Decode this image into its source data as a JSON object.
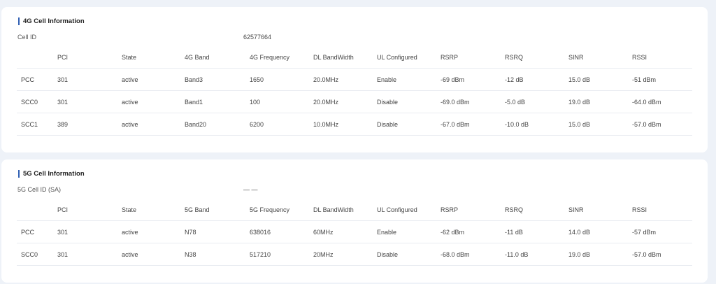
{
  "lte": {
    "title": "4G Cell Information",
    "cell_id_label": "Cell ID",
    "cell_id_value": "62577664",
    "headers": [
      "",
      "PCI",
      "State",
      "4G Band",
      "4G Frequency",
      "DL BandWidth",
      "UL Configured",
      "RSRP",
      "RSRQ",
      "SINR",
      "RSSI"
    ],
    "rows": [
      [
        "PCC",
        "301",
        "active",
        "Band3",
        "1650",
        "20.0MHz",
        "Enable",
        "-69 dBm",
        "-12 dB",
        "15.0 dB",
        "-51 dBm"
      ],
      [
        "SCC0",
        "301",
        "active",
        "Band1",
        "100",
        "20.0MHz",
        "Disable",
        "-69.0 dBm",
        "-5.0 dB",
        "19.0 dB",
        "-64.0 dBm"
      ],
      [
        "SCC1",
        "389",
        "active",
        "Band20",
        "6200",
        "10.0MHz",
        "Disable",
        "-67.0 dBm",
        "-10.0 dB",
        "15.0 dB",
        "-57.0 dBm"
      ]
    ]
  },
  "nr": {
    "title": "5G Cell Information",
    "cell_id_label": "5G Cell ID (SA)",
    "cell_id_value": "— —",
    "headers": [
      "",
      "PCI",
      "State",
      "5G Band",
      "5G Frequency",
      "DL BandWidth",
      "UL Configured",
      "RSRP",
      "RSRQ",
      "SINR",
      "RSSI"
    ],
    "rows": [
      [
        "PCC",
        "301",
        "active",
        "N78",
        "638016",
        "60MHz",
        "Enable",
        "-62 dBm",
        "-11 dB",
        "14.0 dB",
        "-57 dBm"
      ],
      [
        "SCC0",
        "301",
        "active",
        "N38",
        "517210",
        "20MHz",
        "Disable",
        "-68.0 dBm",
        "-11.0 dB",
        "19.0 dB",
        "-57.0 dBm"
      ]
    ]
  },
  "colors": {
    "accent": "#2f5fb3",
    "background": "#eef2f8"
  }
}
